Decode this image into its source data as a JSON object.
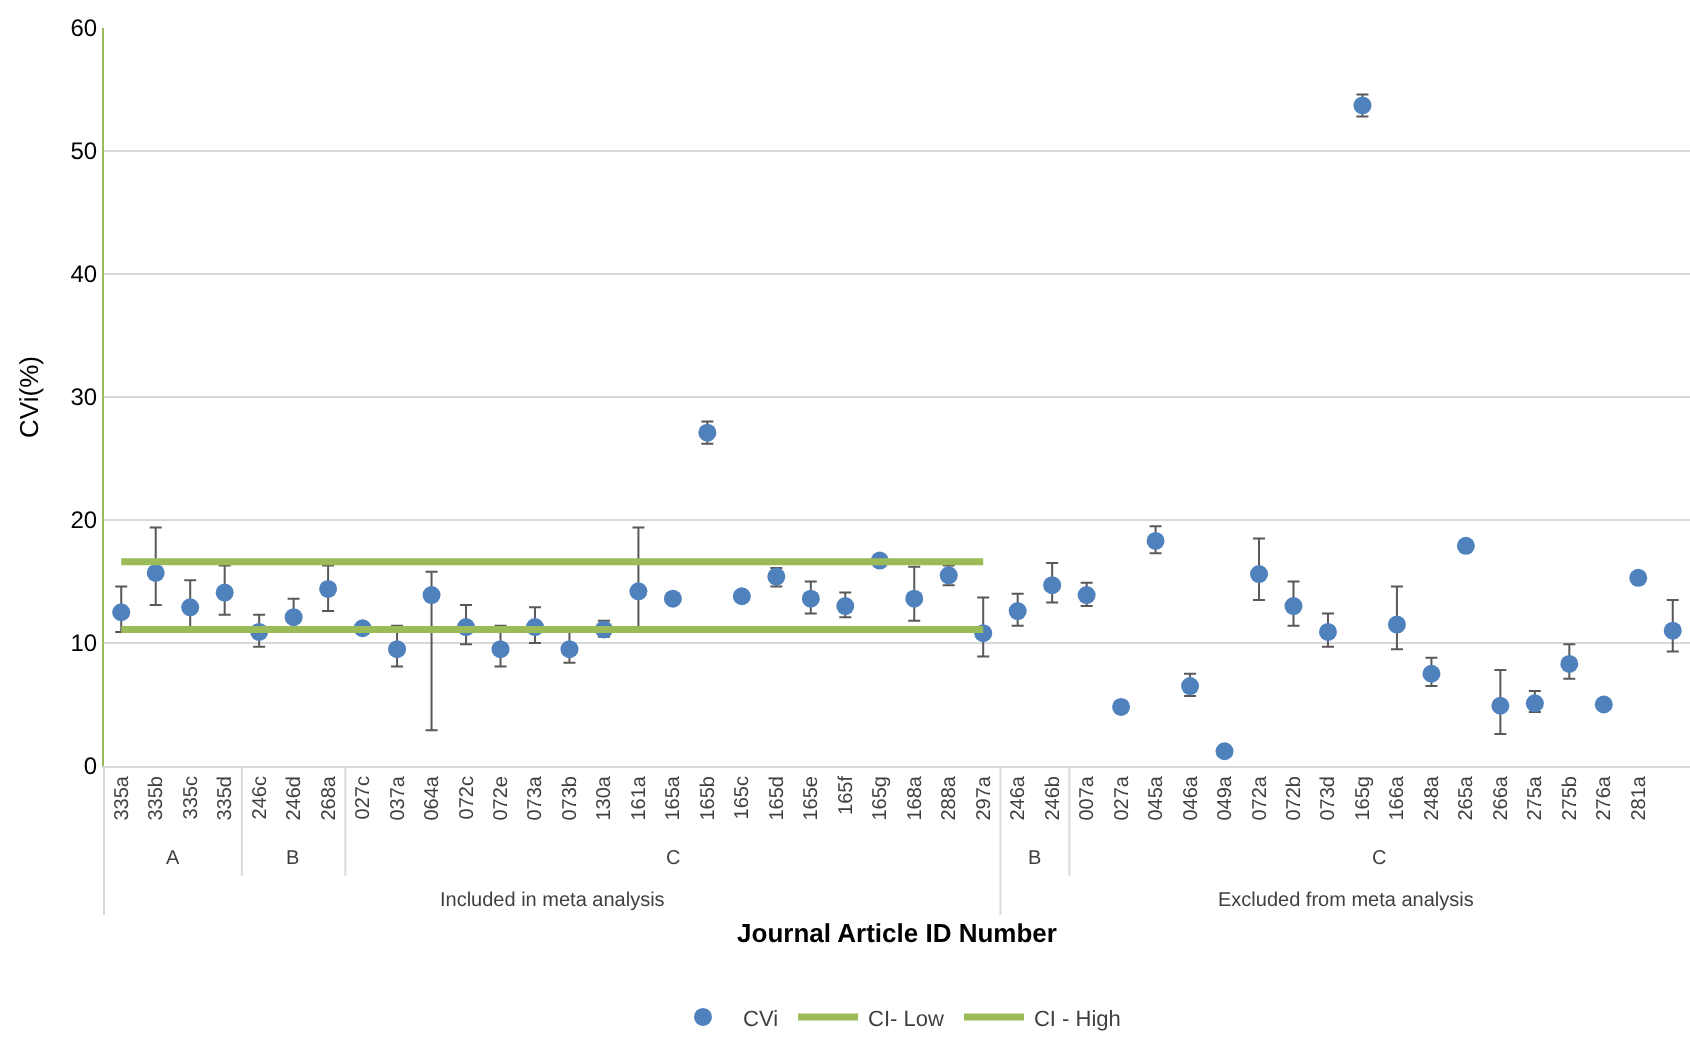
{
  "chart_data": {
    "type": "scatter",
    "xlabel": "Journal Article ID Number",
    "ylabel": "CVi(%)",
    "categories": [
      "335a",
      "335b",
      "335c",
      "335d",
      "246c",
      "246d",
      "268a",
      "027c",
      "037a",
      "064a",
      "072c",
      "072e",
      "073a",
      "073b",
      "130a",
      "161a",
      "165a",
      "165b",
      "165c",
      "165d",
      "165e",
      "165f",
      "165g",
      "168a",
      "288a",
      "297a",
      "246a",
      "246b",
      "007a",
      "027a",
      "045a",
      "046a",
      "049a",
      "072a",
      "072b",
      "073d",
      "165g",
      "166a",
      "248a",
      "265a",
      "266a",
      "275a",
      "275b",
      "276a",
      "281a",
      null
    ],
    "series": [
      {
        "name": "CVi",
        "color": "#4f81bd",
        "marker": "circle",
        "values": [
          12.5,
          15.7,
          12.9,
          14.1,
          10.9,
          12.1,
          14.4,
          11.2,
          9.5,
          13.9,
          11.3,
          9.5,
          11.3,
          9.5,
          11.1,
          14.2,
          13.6,
          27.1,
          13.8,
          15.4,
          13.6,
          13.0,
          16.7,
          13.6,
          15.5,
          10.8,
          12.6,
          14.7,
          13.9,
          4.8,
          18.3,
          6.5,
          1.2,
          15.6,
          13.0,
          10.9,
          53.7,
          11.5,
          7.5,
          17.9,
          4.9,
          5.1,
          8.3,
          5.0,
          15.3,
          11.0
        ],
        "errors": [
          [
            10.9,
            14.6
          ],
          [
            13.1,
            19.4
          ],
          [
            11.3,
            15.1
          ],
          [
            12.3,
            16.3
          ],
          [
            9.7,
            12.3
          ],
          [
            10.9,
            13.6
          ],
          [
            12.6,
            16.3
          ],
          null,
          [
            8.1,
            11.4
          ],
          [
            2.9,
            15.8
          ],
          [
            9.9,
            13.1
          ],
          [
            8.1,
            11.4
          ],
          [
            10.0,
            12.9
          ],
          [
            8.4,
            10.9
          ],
          [
            10.5,
            11.8
          ],
          [
            11.3,
            19.4
          ],
          null,
          [
            26.2,
            28.0
          ],
          null,
          [
            14.6,
            16.1
          ],
          [
            12.4,
            15.0
          ],
          [
            12.1,
            14.1
          ],
          null,
          [
            11.8,
            16.2
          ],
          [
            14.7,
            16.3
          ],
          [
            8.9,
            13.7
          ],
          [
            11.4,
            14.0
          ],
          [
            13.3,
            16.5
          ],
          [
            13.0,
            14.9
          ],
          null,
          [
            17.3,
            19.5
          ],
          [
            5.7,
            7.5
          ],
          null,
          [
            13.5,
            18.5
          ],
          [
            11.4,
            15.0
          ],
          [
            9.7,
            12.4
          ],
          [
            52.8,
            54.6
          ],
          [
            9.5,
            14.6
          ],
          [
            6.5,
            8.8
          ],
          null,
          [
            2.6,
            7.8
          ],
          [
            4.4,
            6.1
          ],
          [
            7.1,
            9.9
          ],
          null,
          null,
          [
            9.3,
            13.5
          ]
        ]
      },
      {
        "name": "CI- Low",
        "type": "line",
        "color": "#9bbb59",
        "line_style": "solid",
        "values": [
          11.1,
          11.1,
          11.1,
          11.1,
          11.1,
          11.1,
          11.1,
          11.1,
          11.1,
          11.1,
          11.1,
          11.1,
          11.1,
          11.1,
          11.1,
          11.1,
          11.1,
          11.1,
          11.1,
          11.1,
          11.1,
          11.1,
          11.1,
          11.1,
          11.1,
          11.1,
          null,
          null,
          null,
          null,
          null,
          null,
          null,
          null,
          null,
          null,
          null,
          null,
          null,
          null,
          null,
          null,
          null,
          null,
          null,
          null
        ]
      },
      {
        "name": "CI - High",
        "type": "line",
        "color": "#9bbb59",
        "line_style": "solid",
        "values": [
          16.6,
          16.6,
          16.6,
          16.6,
          16.6,
          16.6,
          16.6,
          16.6,
          16.6,
          16.6,
          16.6,
          16.6,
          16.6,
          16.6,
          16.6,
          16.6,
          16.6,
          16.6,
          16.6,
          16.6,
          16.6,
          16.6,
          16.6,
          16.6,
          16.6,
          16.6,
          null,
          null,
          null,
          null,
          null,
          null,
          null,
          null,
          null,
          null,
          null,
          null,
          null,
          null,
          null,
          null,
          null,
          null,
          null,
          null
        ]
      }
    ],
    "ylim": [
      0,
      60
    ],
    "yticks": [
      0,
      10,
      20,
      30,
      40,
      50,
      60
    ],
    "grid": "y",
    "legend": "bottom",
    "annotations": [
      "A",
      "B",
      "C",
      "B",
      "C",
      "Included in meta analysis",
      "Excluded from meta analysis"
    ]
  }
}
